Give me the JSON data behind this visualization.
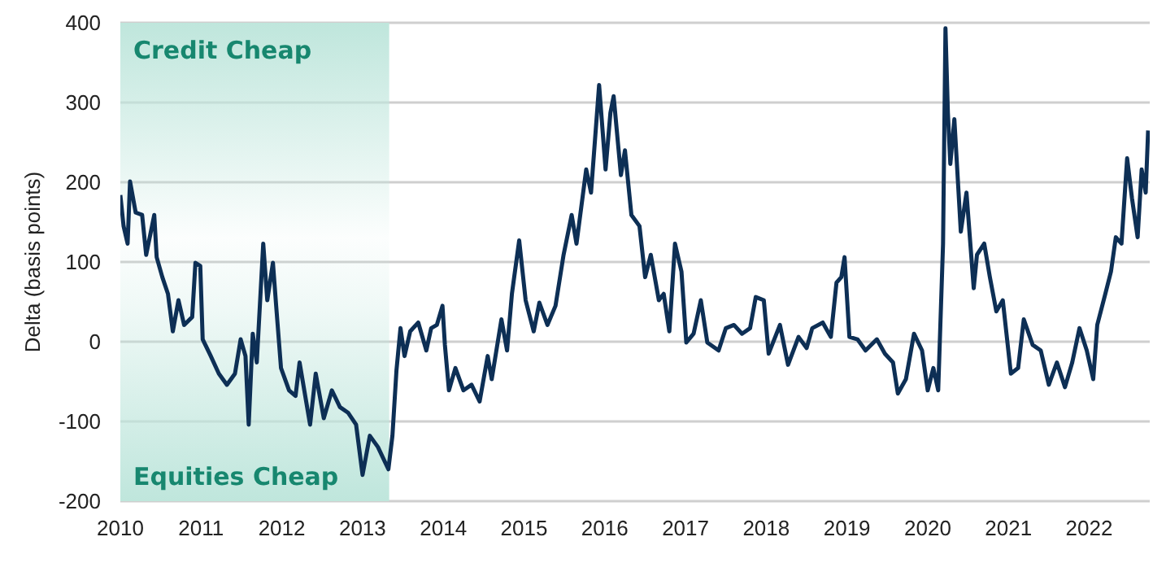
{
  "chart_data": {
    "type": "line",
    "ylabel": "Delta (basis points)",
    "xlim": [
      2010,
      2022.75
    ],
    "xticks": [
      2010,
      2011,
      2012,
      2013,
      2014,
      2015,
      2016,
      2017,
      2018,
      2019,
      2020,
      2021,
      2022
    ],
    "ylim": [
      -200,
      400
    ],
    "yticks": [
      -200,
      -100,
      0,
      100,
      200,
      300,
      400
    ],
    "grid": "y",
    "legend": false,
    "marker": "none",
    "line_style": "solid",
    "bands": [
      {
        "axis": "x",
        "from": 2010,
        "to": 2013.33,
        "color": "#bfe6dc"
      }
    ],
    "annotations": [
      "Credit Cheap",
      "Equities Cheap"
    ],
    "x": [
      2010.0,
      2010.04,
      2010.09,
      2010.12,
      2010.19,
      2010.27,
      2010.32,
      2010.42,
      2010.45,
      2010.52,
      2010.59,
      2010.65,
      2010.72,
      2010.79,
      2010.89,
      2010.93,
      2010.99,
      2011.02,
      2011.12,
      2011.22,
      2011.32,
      2011.42,
      2011.49,
      2011.55,
      2011.59,
      2011.64,
      2011.69,
      2011.77,
      2011.82,
      2011.89,
      2011.93,
      2011.99,
      2012.09,
      2012.17,
      2012.22,
      2012.35,
      2012.42,
      2012.52,
      2012.62,
      2012.72,
      2012.82,
      2012.92,
      2013.0,
      2013.09,
      2013.19,
      2013.32,
      2013.37,
      2013.42,
      2013.47,
      2013.52,
      2013.59,
      2013.69,
      2013.79,
      2013.85,
      2013.92,
      2013.99,
      2014.02,
      2014.07,
      2014.15,
      2014.25,
      2014.35,
      2014.45,
      2014.55,
      2014.6,
      2014.72,
      2014.79,
      2014.85,
      2014.94,
      2015.02,
      2015.12,
      2015.19,
      2015.29,
      2015.39,
      2015.49,
      2015.59,
      2015.65,
      2015.77,
      2015.83,
      2015.93,
      2016.01,
      2016.07,
      2016.11,
      2016.2,
      2016.25,
      2016.33,
      2016.43,
      2016.5,
      2016.57,
      2016.67,
      2016.73,
      2016.8,
      2016.87,
      2016.95,
      2017.01,
      2017.1,
      2017.19,
      2017.27,
      2017.41,
      2017.5,
      2017.6,
      2017.7,
      2017.8,
      2017.87,
      2017.97,
      2018.03,
      2018.17,
      2018.27,
      2018.4,
      2018.5,
      2018.57,
      2018.7,
      2018.8,
      2018.87,
      2018.93,
      2018.97,
      2019.03,
      2019.13,
      2019.23,
      2019.37,
      2019.47,
      2019.57,
      2019.63,
      2019.73,
      2019.83,
      2019.93,
      2020.0,
      2020.07,
      2020.13,
      2020.19,
      2020.22,
      2020.25,
      2020.28,
      2020.33,
      2020.41,
      2020.48,
      2020.57,
      2020.61,
      2020.7,
      2020.77,
      2020.85,
      2020.93,
      2021.03,
      2021.12,
      2021.19,
      2021.3,
      2021.4,
      2021.5,
      2021.6,
      2021.7,
      2021.79,
      2021.88,
      2021.97,
      2022.05,
      2022.1,
      2022.2,
      2022.27,
      2022.33,
      2022.4,
      2022.47,
      2022.53,
      2022.6,
      2022.65,
      2022.7,
      2022.73
    ],
    "series": [
      {
        "color": "#0d2f55",
        "values": [
          184,
          145,
          123,
          201,
          162,
          159,
          109,
          159,
          106,
          81,
          60,
          13,
          52,
          21,
          31,
          99,
          95,
          3,
          -18,
          -40,
          -54,
          -40,
          3,
          -18,
          -104,
          10,
          -26,
          123,
          52,
          99,
          45,
          -33,
          -61,
          -68,
          -26,
          -104,
          -40,
          -96,
          -61,
          -82,
          -89,
          -104,
          -167,
          -118,
          -132,
          -160,
          -118,
          -36,
          17,
          -18,
          13,
          24,
          -11,
          17,
          21,
          45,
          -4,
          -61,
          -33,
          -61,
          -54,
          -75,
          -18,
          -47,
          28,
          -11,
          60,
          127,
          52,
          13,
          49,
          21,
          45,
          109,
          159,
          123,
          216,
          187,
          322,
          216,
          287,
          308,
          209,
          240,
          159,
          145,
          81,
          109,
          52,
          60,
          13,
          123,
          88,
          -1,
          10,
          52,
          -1,
          -11,
          17,
          21,
          10,
          17,
          56,
          52,
          -15,
          21,
          -29,
          6,
          -8,
          17,
          24,
          6,
          74,
          81,
          106,
          6,
          3,
          -11,
          3,
          -15,
          -26,
          -65,
          -47,
          10,
          -11,
          -61,
          -33,
          -61,
          123,
          393,
          287,
          223,
          279,
          138,
          187,
          67,
          109,
          123,
          81,
          38,
          52,
          -40,
          -33,
          28,
          -4,
          -11,
          -54,
          -26,
          -57,
          -26,
          17,
          -11,
          -47,
          21,
          60,
          88,
          131,
          123,
          230,
          180,
          131,
          216,
          187,
          265
        ]
      }
    ]
  }
}
